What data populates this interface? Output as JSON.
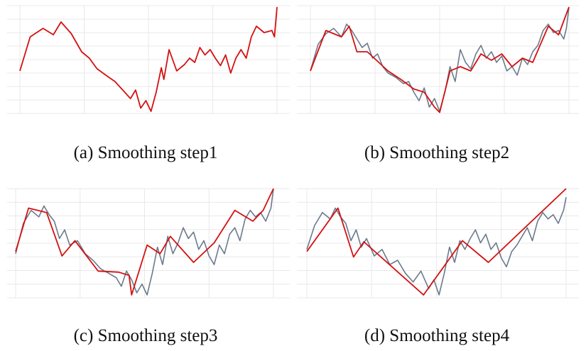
{
  "colors": {
    "raw": "#6b7a8c",
    "smooth": "#d41111",
    "grid": "#e8e8e8"
  },
  "chart_data": [
    {
      "type": "line",
      "caption": "(a) Smoothing step1",
      "grid": true,
      "xlim": [
        0,
        100
      ],
      "ylim": [
        0,
        100
      ],
      "raw_visible": false,
      "smooth": [
        [
          0,
          40
        ],
        [
          4,
          72
        ],
        [
          9,
          80
        ],
        [
          13,
          74
        ],
        [
          16,
          86
        ],
        [
          20,
          75
        ],
        [
          24,
          58
        ],
        [
          27,
          52
        ],
        [
          30,
          42
        ],
        [
          34,
          35
        ],
        [
          37,
          30
        ],
        [
          40,
          22
        ],
        [
          43,
          14
        ],
        [
          45,
          22
        ],
        [
          47,
          5
        ],
        [
          49,
          12
        ],
        [
          51,
          2
        ],
        [
          53,
          20
        ],
        [
          55,
          43
        ],
        [
          56,
          32
        ],
        [
          58,
          60
        ],
        [
          61,
          40
        ],
        [
          64,
          46
        ],
        [
          66,
          52
        ],
        [
          68,
          48
        ],
        [
          70,
          62
        ],
        [
          72,
          55
        ],
        [
          74,
          60
        ],
        [
          76,
          52
        ],
        [
          78,
          45
        ],
        [
          80,
          55
        ],
        [
          82,
          38
        ],
        [
          84,
          52
        ],
        [
          86,
          60
        ],
        [
          88,
          52
        ],
        [
          90,
          72
        ],
        [
          92,
          82
        ],
        [
          95,
          76
        ],
        [
          98,
          78
        ],
        [
          99,
          72
        ],
        [
          100,
          100
        ]
      ],
      "raw": [
        [
          0,
          40
        ],
        [
          4,
          72
        ],
        [
          9,
          80
        ],
        [
          13,
          74
        ],
        [
          16,
          86
        ],
        [
          20,
          75
        ],
        [
          24,
          58
        ],
        [
          27,
          52
        ],
        [
          30,
          42
        ],
        [
          34,
          35
        ],
        [
          37,
          30
        ],
        [
          40,
          22
        ],
        [
          43,
          14
        ],
        [
          45,
          22
        ],
        [
          47,
          5
        ],
        [
          49,
          12
        ],
        [
          51,
          2
        ],
        [
          53,
          20
        ],
        [
          55,
          43
        ],
        [
          56,
          32
        ],
        [
          58,
          60
        ],
        [
          61,
          40
        ],
        [
          64,
          46
        ],
        [
          66,
          52
        ],
        [
          68,
          48
        ],
        [
          70,
          62
        ],
        [
          72,
          55
        ],
        [
          74,
          60
        ],
        [
          76,
          52
        ],
        [
          78,
          45
        ],
        [
          80,
          55
        ],
        [
          82,
          38
        ],
        [
          84,
          52
        ],
        [
          86,
          60
        ],
        [
          88,
          52
        ],
        [
          90,
          72
        ],
        [
          92,
          82
        ],
        [
          95,
          76
        ],
        [
          98,
          78
        ],
        [
          99,
          72
        ],
        [
          100,
          100
        ]
      ]
    },
    {
      "type": "line",
      "caption": "(b) Smoothing step2",
      "grid": true,
      "xlim": [
        0,
        100
      ],
      "ylim": [
        0,
        100
      ],
      "raw_visible": true,
      "raw": [
        [
          0,
          40
        ],
        [
          3,
          65
        ],
        [
          6,
          75
        ],
        [
          9,
          80
        ],
        [
          12,
          72
        ],
        [
          14,
          84
        ],
        [
          16,
          78
        ],
        [
          18,
          70
        ],
        [
          20,
          62
        ],
        [
          22,
          66
        ],
        [
          24,
          52
        ],
        [
          26,
          56
        ],
        [
          28,
          44
        ],
        [
          30,
          38
        ],
        [
          33,
          34
        ],
        [
          36,
          28
        ],
        [
          38,
          30
        ],
        [
          40,
          20
        ],
        [
          42,
          12
        ],
        [
          44,
          24
        ],
        [
          46,
          6
        ],
        [
          48,
          14
        ],
        [
          50,
          2
        ],
        [
          52,
          20
        ],
        [
          54,
          44
        ],
        [
          56,
          30
        ],
        [
          58,
          60
        ],
        [
          60,
          48
        ],
        [
          62,
          42
        ],
        [
          64,
          56
        ],
        [
          66,
          64
        ],
        [
          68,
          52
        ],
        [
          70,
          58
        ],
        [
          72,
          48
        ],
        [
          74,
          54
        ],
        [
          76,
          40
        ],
        [
          78,
          44
        ],
        [
          80,
          36
        ],
        [
          82,
          52
        ],
        [
          84,
          46
        ],
        [
          86,
          58
        ],
        [
          88,
          64
        ],
        [
          90,
          78
        ],
        [
          92,
          84
        ],
        [
          94,
          76
        ],
        [
          96,
          78
        ],
        [
          98,
          70
        ],
        [
          99,
          80
        ],
        [
          100,
          100
        ]
      ],
      "smooth": [
        [
          0,
          40
        ],
        [
          6,
          78
        ],
        [
          12,
          72
        ],
        [
          15,
          82
        ],
        [
          18,
          58
        ],
        [
          22,
          58
        ],
        [
          30,
          40
        ],
        [
          35,
          32
        ],
        [
          40,
          23
        ],
        [
          44,
          20
        ],
        [
          48,
          6
        ],
        [
          50,
          1
        ],
        [
          54,
          40
        ],
        [
          58,
          44
        ],
        [
          62,
          40
        ],
        [
          66,
          56
        ],
        [
          70,
          50
        ],
        [
          74,
          56
        ],
        [
          78,
          44
        ],
        [
          82,
          52
        ],
        [
          86,
          48
        ],
        [
          92,
          82
        ],
        [
          96,
          74
        ],
        [
          100,
          100
        ]
      ]
    },
    {
      "type": "line",
      "caption": "(c) Smoothing step3",
      "grid": true,
      "xlim": [
        0,
        100
      ],
      "ylim": [
        0,
        100
      ],
      "raw_visible": true,
      "raw": [
        [
          0,
          40
        ],
        [
          3,
          68
        ],
        [
          6,
          80
        ],
        [
          9,
          74
        ],
        [
          11,
          84
        ],
        [
          13,
          76
        ],
        [
          15,
          70
        ],
        [
          17,
          54
        ],
        [
          19,
          62
        ],
        [
          21,
          48
        ],
        [
          24,
          52
        ],
        [
          27,
          40
        ],
        [
          30,
          34
        ],
        [
          33,
          26
        ],
        [
          36,
          22
        ],
        [
          39,
          18
        ],
        [
          41,
          10
        ],
        [
          43,
          24
        ],
        [
          45,
          16
        ],
        [
          47,
          4
        ],
        [
          49,
          12
        ],
        [
          51,
          2
        ],
        [
          53,
          22
        ],
        [
          55,
          46
        ],
        [
          57,
          30
        ],
        [
          59,
          56
        ],
        [
          61,
          40
        ],
        [
          63,
          50
        ],
        [
          65,
          64
        ],
        [
          67,
          54
        ],
        [
          69,
          60
        ],
        [
          71,
          44
        ],
        [
          73,
          52
        ],
        [
          75,
          38
        ],
        [
          77,
          30
        ],
        [
          79,
          48
        ],
        [
          81,
          40
        ],
        [
          83,
          58
        ],
        [
          85,
          64
        ],
        [
          87,
          52
        ],
        [
          89,
          72
        ],
        [
          91,
          80
        ],
        [
          93,
          74
        ],
        [
          95,
          78
        ],
        [
          97,
          70
        ],
        [
          99,
          82
        ],
        [
          100,
          100
        ]
      ],
      "smooth": [
        [
          0,
          42
        ],
        [
          5,
          82
        ],
        [
          12,
          78
        ],
        [
          18,
          38
        ],
        [
          23,
          52
        ],
        [
          32,
          24
        ],
        [
          40,
          23
        ],
        [
          44,
          20
        ],
        [
          45,
          2
        ],
        [
          51,
          48
        ],
        [
          56,
          40
        ],
        [
          60,
          56
        ],
        [
          69,
          32
        ],
        [
          77,
          50
        ],
        [
          85,
          80
        ],
        [
          92,
          70
        ],
        [
          96,
          80
        ],
        [
          100,
          100
        ]
      ]
    },
    {
      "type": "line",
      "caption": "(d) Smoothing step4",
      "grid": true,
      "xlim": [
        0,
        100
      ],
      "ylim": [
        0,
        100
      ],
      "raw_visible": true,
      "raw": [
        [
          0,
          44
        ],
        [
          3,
          66
        ],
        [
          6,
          78
        ],
        [
          9,
          72
        ],
        [
          11,
          82
        ],
        [
          13,
          74
        ],
        [
          15,
          68
        ],
        [
          17,
          52
        ],
        [
          19,
          62
        ],
        [
          21,
          46
        ],
        [
          23,
          54
        ],
        [
          26,
          38
        ],
        [
          29,
          44
        ],
        [
          32,
          30
        ],
        [
          35,
          34
        ],
        [
          38,
          22
        ],
        [
          41,
          14
        ],
        [
          44,
          24
        ],
        [
          47,
          8
        ],
        [
          49,
          16
        ],
        [
          51,
          2
        ],
        [
          53,
          22
        ],
        [
          55,
          46
        ],
        [
          57,
          32
        ],
        [
          59,
          52
        ],
        [
          61,
          44
        ],
        [
          63,
          54
        ],
        [
          65,
          62
        ],
        [
          67,
          50
        ],
        [
          69,
          58
        ],
        [
          71,
          44
        ],
        [
          73,
          50
        ],
        [
          75,
          36
        ],
        [
          77,
          28
        ],
        [
          79,
          42
        ],
        [
          81,
          48
        ],
        [
          83,
          56
        ],
        [
          85,
          64
        ],
        [
          87,
          52
        ],
        [
          89,
          70
        ],
        [
          91,
          78
        ],
        [
          93,
          72
        ],
        [
          95,
          76
        ],
        [
          97,
          68
        ],
        [
          99,
          80
        ],
        [
          100,
          92
        ]
      ],
      "smooth": [
        [
          0,
          42
        ],
        [
          12,
          82
        ],
        [
          18,
          37
        ],
        [
          22,
          51
        ],
        [
          45,
          2
        ],
        [
          60,
          52
        ],
        [
          70,
          32
        ],
        [
          100,
          100
        ]
      ]
    }
  ]
}
